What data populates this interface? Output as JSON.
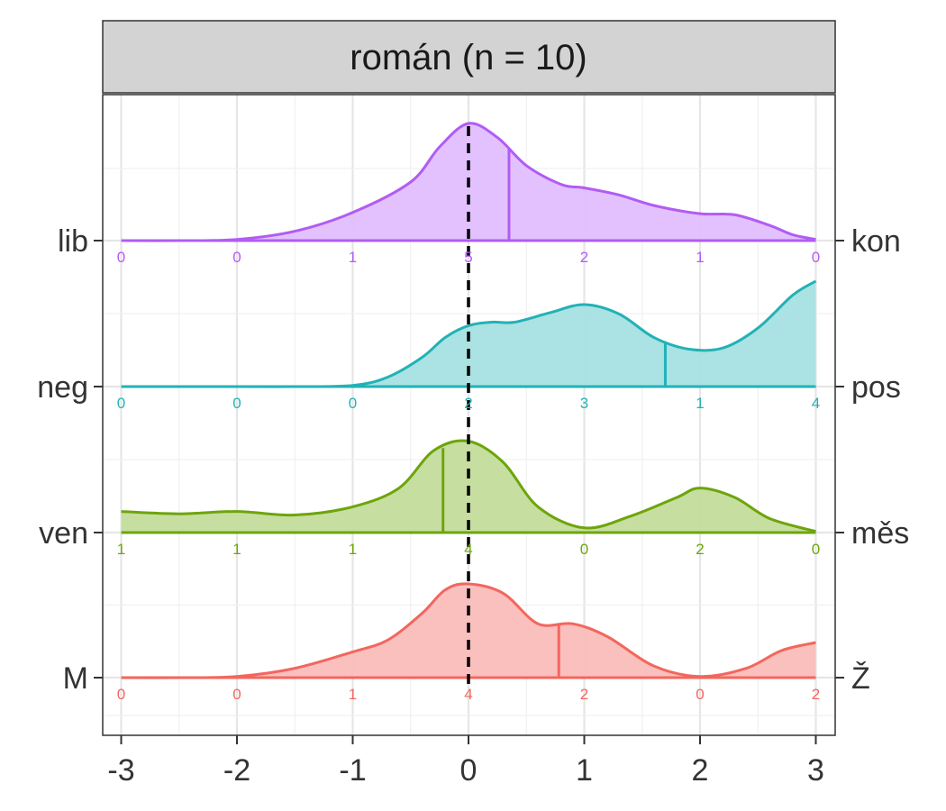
{
  "chart_data": {
    "type": "ridgeline",
    "title": "román (n = 10)",
    "xlabel": "",
    "ylabel": "",
    "xlim": [
      -3,
      3
    ],
    "x_ticks": [
      -3,
      -2,
      -1,
      0,
      1,
      2,
      3
    ],
    "grid": true,
    "reference_line": {
      "x": 0,
      "style": "dashed",
      "color": "#000000"
    },
    "count_positions": [
      -3,
      -2,
      -1,
      0,
      1,
      2,
      3
    ],
    "series": [
      {
        "left_label": "lib",
        "right_label": "kon",
        "color": "#B15CF4",
        "fill": "#E2BEFF",
        "median": 0.35,
        "counts": [
          0,
          0,
          1,
          5,
          2,
          1,
          0
        ],
        "density": [
          [
            -3.0,
            0.0
          ],
          [
            -2.5,
            0.0
          ],
          [
            -2.0,
            0.01
          ],
          [
            -1.5,
            0.08
          ],
          [
            -1.0,
            0.24
          ],
          [
            -0.5,
            0.5
          ],
          [
            -0.25,
            0.8
          ],
          [
            0.0,
            1.0
          ],
          [
            0.25,
            0.88
          ],
          [
            0.5,
            0.64
          ],
          [
            0.8,
            0.48
          ],
          [
            1.0,
            0.45
          ],
          [
            1.3,
            0.39
          ],
          [
            1.6,
            0.3
          ],
          [
            2.0,
            0.23
          ],
          [
            2.3,
            0.22
          ],
          [
            2.6,
            0.13
          ],
          [
            2.8,
            0.05
          ],
          [
            3.0,
            0.01
          ]
        ]
      },
      {
        "left_label": "neg",
        "right_label": "pos",
        "color": "#22B2B6",
        "fill": "#A6E0E1",
        "median": 1.7,
        "counts": [
          0,
          0,
          0,
          2,
          3,
          1,
          4
        ],
        "density": [
          [
            -3.0,
            0.0
          ],
          [
            -2.0,
            0.0
          ],
          [
            -1.5,
            0.0
          ],
          [
            -1.0,
            0.01
          ],
          [
            -0.7,
            0.08
          ],
          [
            -0.4,
            0.25
          ],
          [
            -0.2,
            0.42
          ],
          [
            0.0,
            0.52
          ],
          [
            0.2,
            0.55
          ],
          [
            0.4,
            0.55
          ],
          [
            0.7,
            0.63
          ],
          [
            1.0,
            0.7
          ],
          [
            1.3,
            0.62
          ],
          [
            1.6,
            0.42
          ],
          [
            1.9,
            0.32
          ],
          [
            2.2,
            0.33
          ],
          [
            2.5,
            0.5
          ],
          [
            2.8,
            0.78
          ],
          [
            3.0,
            0.9
          ]
        ]
      },
      {
        "left_label": "ven",
        "right_label": "měs",
        "color": "#6DA50B",
        "fill": "#C4DC9C",
        "median": -0.22,
        "counts": [
          1,
          1,
          1,
          4,
          0,
          2,
          0
        ],
        "density": [
          [
            -3.0,
            0.18
          ],
          [
            -2.5,
            0.16
          ],
          [
            -2.0,
            0.18
          ],
          [
            -1.5,
            0.15
          ],
          [
            -1.0,
            0.22
          ],
          [
            -0.6,
            0.38
          ],
          [
            -0.3,
            0.7
          ],
          [
            0.0,
            0.78
          ],
          [
            0.3,
            0.6
          ],
          [
            0.6,
            0.22
          ],
          [
            1.0,
            0.04
          ],
          [
            1.4,
            0.14
          ],
          [
            1.8,
            0.3
          ],
          [
            2.0,
            0.38
          ],
          [
            2.3,
            0.3
          ],
          [
            2.6,
            0.12
          ],
          [
            3.0,
            0.01
          ]
        ]
      },
      {
        "left_label": "M",
        "right_label": "Ž",
        "color": "#F3665E",
        "fill": "#F9BDB9",
        "median": 0.78,
        "counts": [
          0,
          0,
          1,
          4,
          2,
          0,
          2
        ],
        "density": [
          [
            -3.0,
            0.0
          ],
          [
            -2.5,
            0.0
          ],
          [
            -2.0,
            0.01
          ],
          [
            -1.5,
            0.08
          ],
          [
            -1.0,
            0.22
          ],
          [
            -0.7,
            0.32
          ],
          [
            -0.4,
            0.55
          ],
          [
            -0.2,
            0.75
          ],
          [
            0.0,
            0.8
          ],
          [
            0.3,
            0.72
          ],
          [
            0.6,
            0.46
          ],
          [
            0.9,
            0.46
          ],
          [
            1.2,
            0.35
          ],
          [
            1.6,
            0.1
          ],
          [
            2.0,
            0.01
          ],
          [
            2.4,
            0.08
          ],
          [
            2.7,
            0.23
          ],
          [
            3.0,
            0.3
          ]
        ]
      }
    ]
  }
}
